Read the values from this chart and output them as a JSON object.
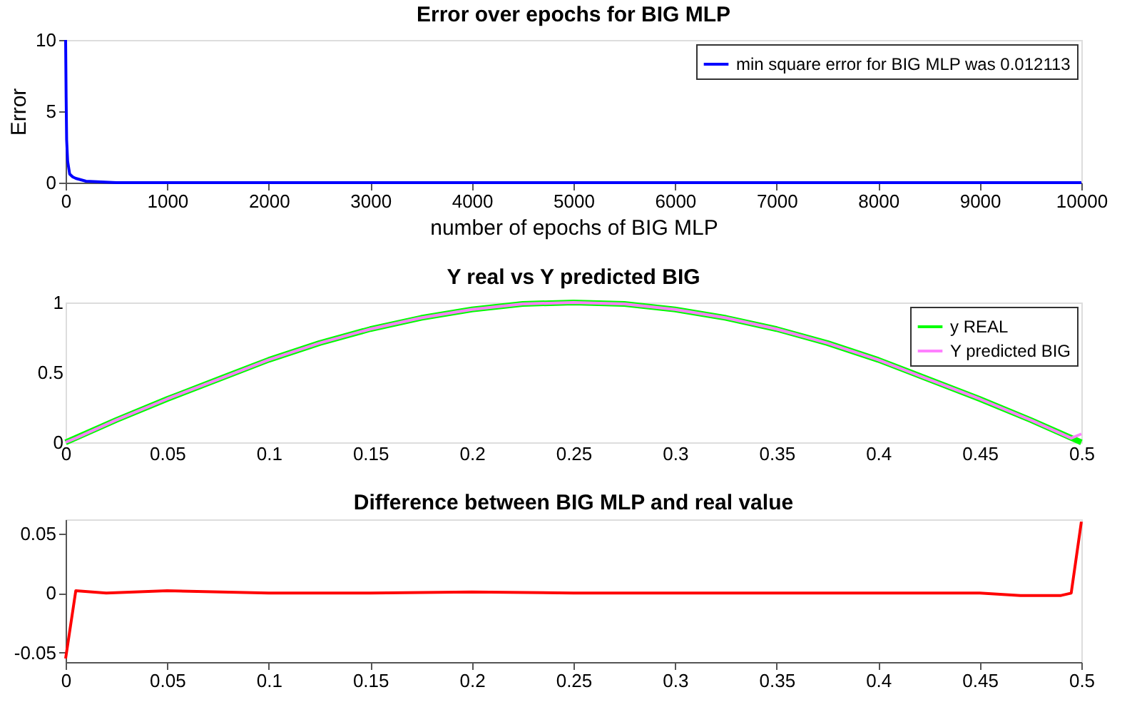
{
  "chart_data": [
    {
      "type": "line",
      "title": "Error over epochs for BIG MLP",
      "xlabel": "number of epochs of BIG MLP",
      "ylabel": "Error",
      "xlim": [
        0,
        10000
      ],
      "ylim": [
        0,
        10
      ],
      "xticks": [
        0,
        1000,
        2000,
        3000,
        4000,
        5000,
        6000,
        7000,
        8000,
        9000,
        10000
      ],
      "yticks": [
        0,
        5,
        10
      ],
      "grid": false,
      "legend": "top right",
      "line_style": "solid",
      "series": [
        {
          "name": "min square error for BIG MLP was 0.012113",
          "color": "#0000ff",
          "x": [
            0,
            5,
            10,
            20,
            40,
            70,
            100,
            200,
            500,
            1000,
            2000,
            4000,
            6000,
            8000,
            10000
          ],
          "values": [
            10,
            6,
            3,
            1.5,
            0.6,
            0.4,
            0.3,
            0.1,
            0,
            0,
            0,
            0,
            0,
            0,
            0
          ]
        }
      ]
    },
    {
      "type": "line",
      "title": "Y real vs Y predicted BIG",
      "xlim": [
        0,
        0.5
      ],
      "ylim": [
        0,
        1
      ],
      "xticks": [
        0,
        0.05,
        0.1,
        0.15,
        0.2,
        0.25,
        0.3,
        0.35,
        0.4,
        0.45,
        0.5
      ],
      "yticks": [
        0,
        0.5,
        1
      ],
      "grid": false,
      "legend": "top right",
      "line_style": "solid",
      "series": [
        {
          "name": "y REAL",
          "color": "#00ff00",
          "x": [
            0,
            0.025,
            0.05,
            0.075,
            0.1,
            0.125,
            0.15,
            0.175,
            0.2,
            0.225,
            0.25,
            0.275,
            0.3,
            0.325,
            0.35,
            0.375,
            0.4,
            0.425,
            0.45,
            0.475,
            0.5
          ],
          "values": [
            0,
            0.16,
            0.31,
            0.45,
            0.59,
            0.71,
            0.81,
            0.89,
            0.95,
            0.99,
            1,
            0.99,
            0.95,
            0.89,
            0.81,
            0.71,
            0.59,
            0.45,
            0.31,
            0.16,
            0
          ]
        },
        {
          "name": "Y predicted BIG",
          "color": "#ff80ff",
          "x": [
            0,
            0.005,
            0.025,
            0.05,
            0.075,
            0.1,
            0.125,
            0.15,
            0.175,
            0.2,
            0.225,
            0.25,
            0.275,
            0.3,
            0.325,
            0.35,
            0.375,
            0.4,
            0.425,
            0.45,
            0.475,
            0.495,
            0.5
          ],
          "values": [
            0,
            0.03,
            0.16,
            0.31,
            0.45,
            0.59,
            0.71,
            0.81,
            0.89,
            0.95,
            0.99,
            1,
            0.99,
            0.95,
            0.89,
            0.81,
            0.71,
            0.59,
            0.45,
            0.31,
            0.16,
            0.03,
            0.06
          ]
        }
      ]
    },
    {
      "type": "line",
      "title": "Difference between BIG MLP and real value",
      "xlim": [
        0,
        0.5
      ],
      "ylim": [
        -0.058,
        0.062
      ],
      "xticks": [
        0,
        0.05,
        0.1,
        0.15,
        0.2,
        0.25,
        0.3,
        0.35,
        0.4,
        0.45,
        0.5
      ],
      "yticks": [
        -0.05,
        0,
        0.05
      ],
      "grid": false,
      "line_style": "solid",
      "series": [
        {
          "color": "#ff0000",
          "x": [
            0,
            0.005,
            0.02,
            0.05,
            0.1,
            0.15,
            0.2,
            0.25,
            0.3,
            0.35,
            0.4,
            0.45,
            0.47,
            0.49,
            0.495,
            0.5
          ],
          "values": [
            -0.055,
            0.002,
            0,
            0.002,
            0,
            0,
            0.001,
            0,
            0,
            0,
            0,
            0,
            -0.002,
            -0.002,
            0,
            0.06
          ]
        }
      ]
    }
  ]
}
